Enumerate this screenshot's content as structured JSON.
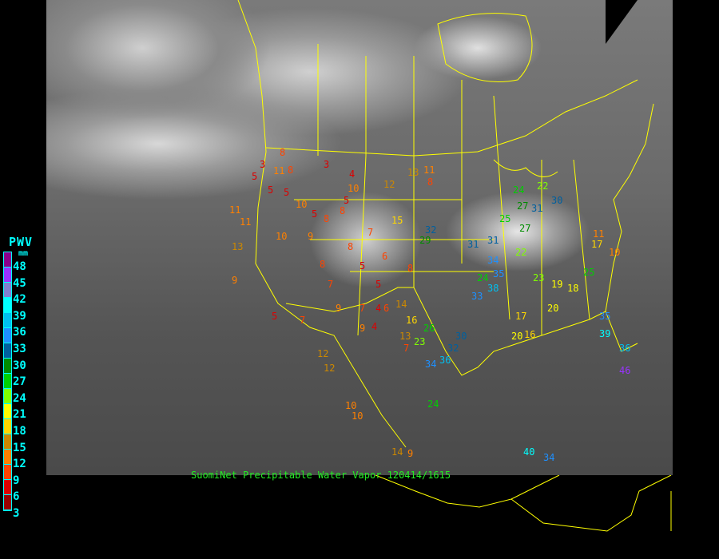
{
  "caption": "SuomiNet Precipitable Water Vapor 120414/1615",
  "legend": {
    "title": "PWV",
    "unit": "mm",
    "labels": [
      "48",
      "45",
      "42",
      "39",
      "36",
      "33",
      "30",
      "27",
      "24",
      "21",
      "18",
      "15",
      "12",
      "9",
      "6",
      "3"
    ],
    "colors": [
      "#8b008b",
      "#9933ff",
      "#8080d0",
      "#00ffff",
      "#00c0f0",
      "#1e90ff",
      "#00609f",
      "#008c00",
      "#00d000",
      "#80ff00",
      "#ffff00",
      "#ffd700",
      "#cc8800",
      "#ff8000",
      "#ff4400",
      "#dd0000",
      "#990000"
    ]
  },
  "border_color": "#ffff00",
  "stations": [
    "3",
    "8",
    "5",
    "8",
    "5",
    "11",
    "3",
    "5",
    "8",
    "10",
    "11",
    "5",
    "8",
    "13",
    "11",
    "15",
    "12",
    "8",
    "10",
    "4",
    "5",
    "7",
    "9",
    "10",
    "8",
    "7",
    "5",
    "8",
    "6",
    "7",
    "5",
    "9",
    "12",
    "10",
    "9",
    "11",
    "13",
    "5",
    "7",
    "4",
    "9",
    "6",
    "4",
    "8",
    "14",
    "16",
    "13",
    "7",
    "23",
    "26",
    "34",
    "36",
    "32",
    "30",
    "29",
    "32",
    "31",
    "34",
    "38",
    "35",
    "33",
    "31",
    "24",
    "25",
    "20",
    "22",
    "17",
    "16",
    "19",
    "18",
    "23",
    "27",
    "30",
    "31",
    "24",
    "20",
    "25",
    "17",
    "11",
    "10",
    "35",
    "39",
    "36",
    "46",
    "12",
    "10",
    "24",
    "9",
    "14",
    "40",
    "34",
    "27",
    "22"
  ]
}
